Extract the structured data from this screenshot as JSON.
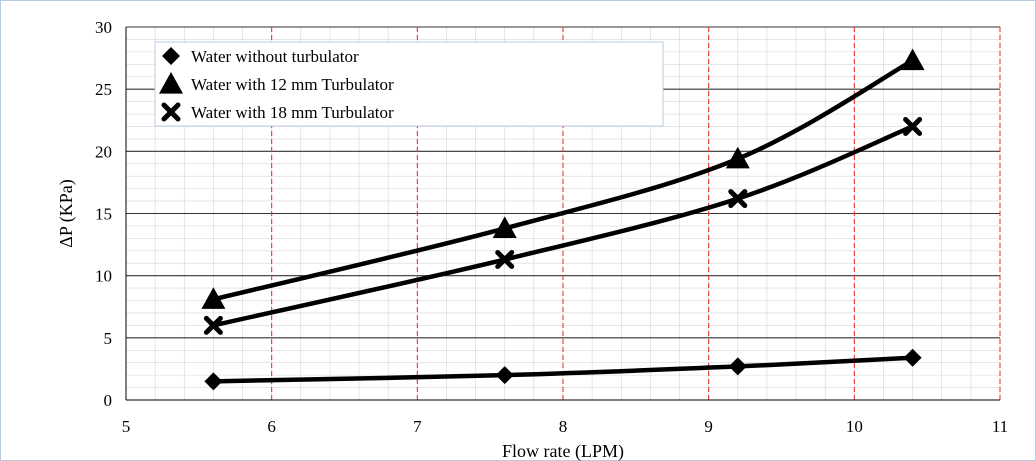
{
  "chart_data": {
    "type": "line",
    "xlabel": "Flow rate (LPM)",
    "ylabel": "ΔP (KPa)",
    "xlim": [
      5,
      11
    ],
    "ylim": [
      0,
      30
    ],
    "xticks": [
      5,
      6,
      7,
      8,
      9,
      10,
      11
    ],
    "yticks": [
      0,
      5,
      10,
      15,
      20,
      25,
      30
    ],
    "grid": true,
    "legend_position": "top-left",
    "series": [
      {
        "name": "Water without turbulator",
        "marker": "diamond",
        "color": "#000000",
        "x": [
          5.6,
          7.6,
          9.2,
          10.4
        ],
        "y": [
          1.5,
          2.0,
          2.7,
          3.4
        ]
      },
      {
        "name": "Water with 12 mm  Turbulator",
        "marker": "triangle",
        "color": "#000000",
        "x": [
          5.6,
          7.6,
          9.2,
          10.4
        ],
        "y": [
          8.1,
          13.8,
          19.4,
          27.3
        ]
      },
      {
        "name": "Water with 18 mm Turbulator",
        "marker": "cross",
        "color": "#000000",
        "x": [
          5.6,
          7.6,
          9.2,
          10.4
        ],
        "y": [
          6.0,
          11.3,
          16.2,
          22.0
        ]
      }
    ],
    "colors": {
      "major_x_grid": "#e53935",
      "major_y_grid": "#333333",
      "minor_grid": "#d6d6d6"
    }
  }
}
